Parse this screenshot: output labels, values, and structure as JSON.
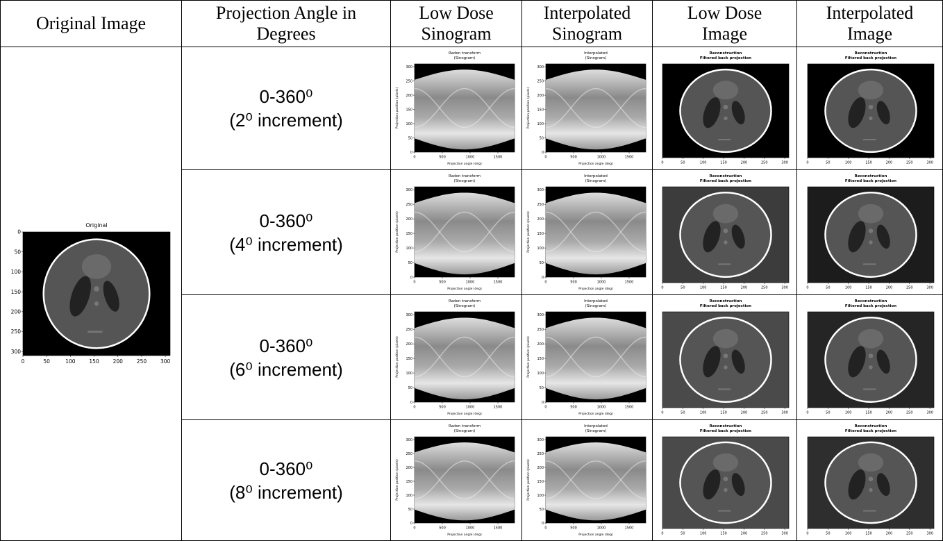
{
  "header": [
    [
      "Original Image"
    ],
    [
      "Projection Angle in",
      "Degrees"
    ],
    [
      "Low Dose",
      "Sinogram"
    ],
    [
      "Interpolated",
      "Sinogram"
    ],
    [
      "Low Dose",
      "Image"
    ],
    [
      "Interpolated",
      "Image"
    ]
  ],
  "plots": {
    "original": {
      "title": [
        "Original"
      ],
      "xlim": [
        0,
        310
      ],
      "ylim": [
        310,
        0
      ],
      "xticks": [
        0,
        50,
        100,
        150,
        200,
        250,
        300
      ],
      "yticks": [
        0,
        50,
        100,
        150,
        200,
        250,
        300
      ]
    },
    "low_dose_sinogram": {
      "title": [
        "Radon transform",
        "(Sinogram)"
      ],
      "xlabel": "Projection angle (deg)",
      "ylabel": "Projection position (pixels)",
      "xlim": [
        0,
        1800
      ],
      "ylim": [
        0,
        310
      ],
      "xticks": [
        0,
        500,
        1000,
        1500
      ],
      "yticks": [
        0,
        50,
        100,
        150,
        200,
        250,
        300
      ]
    },
    "interpolated_sinogram": {
      "title": [
        "Interpolated",
        "(Sinogram)"
      ],
      "xlabel": "Projection angle (deg)",
      "ylabel": "Projection position (pixels)",
      "xlim": [
        0,
        1800
      ],
      "ylim": [
        0,
        310
      ],
      "xticks": [
        0,
        500,
        1000,
        1500
      ],
      "yticks": [
        0,
        50,
        100,
        150,
        200,
        250,
        300
      ]
    },
    "reconstruction": {
      "title": [
        "Reconstruction",
        "Filtered back projection"
      ],
      "xlim": [
        0,
        310
      ],
      "xticks": [
        0,
        50,
        100,
        150,
        200,
        250,
        300
      ]
    }
  },
  "rows": [
    {
      "angle": "0-360⁰",
      "increment": "(2⁰ increment)"
    },
    {
      "angle": "0-360⁰",
      "increment": "(4⁰ increment)"
    },
    {
      "angle": "0-360⁰",
      "increment": "(6⁰ increment)"
    },
    {
      "angle": "0-360⁰",
      "increment": "(8⁰ increment)"
    }
  ]
}
